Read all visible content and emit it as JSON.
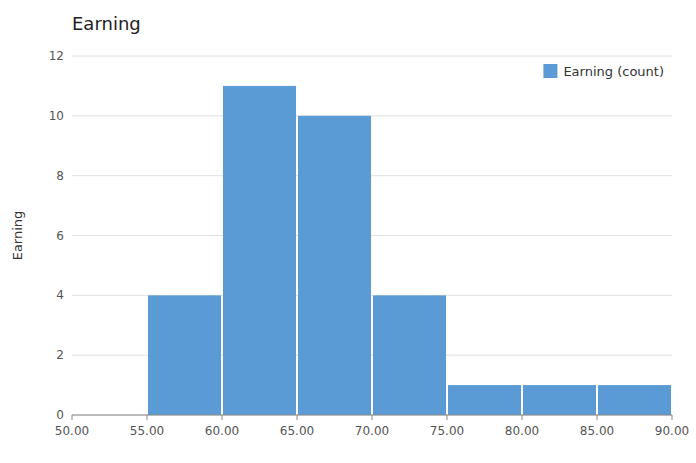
{
  "chart_data": {
    "type": "histogram",
    "title": "Earning",
    "ylabel": "Earning",
    "bins": [
      50,
      55,
      60,
      65,
      70,
      75,
      80,
      85,
      90
    ],
    "series": [
      {
        "name": "Earning (count)",
        "color": "#5b9bd5",
        "values": [
          0,
          4,
          11,
          10,
          4,
          1,
          1,
          1
        ]
      }
    ],
    "xlim": [
      50,
      90
    ],
    "ylim": [
      0,
      12
    ],
    "xticks": [
      {
        "value": 50,
        "label": "50.00"
      },
      {
        "value": 55,
        "label": "55.00"
      },
      {
        "value": 60,
        "label": "60.00"
      },
      {
        "value": 65,
        "label": "65.00"
      },
      {
        "value": 70,
        "label": "70.00"
      },
      {
        "value": 75,
        "label": "75.00"
      },
      {
        "value": 80,
        "label": "80.00"
      },
      {
        "value": 85,
        "label": "85.00"
      },
      {
        "value": 90,
        "label": "90.00"
      }
    ],
    "yticks": [
      0,
      2,
      4,
      6,
      8,
      10,
      12
    ],
    "grid": true,
    "legend": "upper right"
  }
}
